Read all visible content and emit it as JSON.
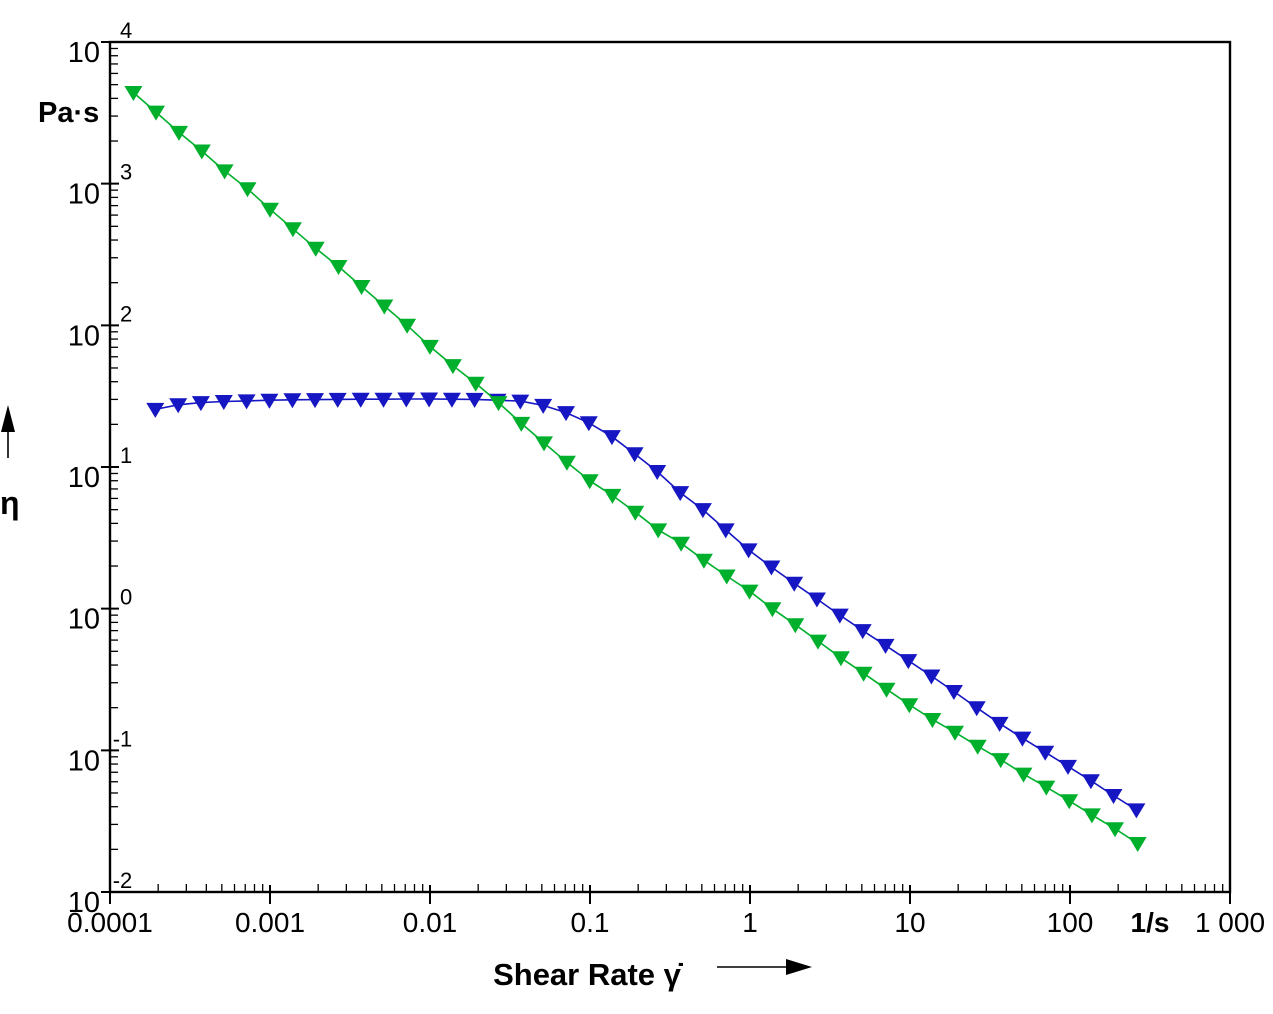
{
  "figure": {
    "background": "#ffffff",
    "frame_color": "#000000"
  },
  "chart_data": {
    "type": "line",
    "title": "",
    "x_scale": "log",
    "y_scale": "log",
    "xlabel": "Shear Rate γ̇",
    "ylabel": "η",
    "x_unit": "1/s",
    "y_unit": "Pa·s",
    "xlim": [
      0.0001,
      1000
    ],
    "ylim": [
      0.01,
      10000
    ],
    "grid": false,
    "legend_position": "none",
    "marker": "triangle-down",
    "x_tick_labels": [
      "0.0001",
      "0.001",
      "0.01",
      "0.1",
      "1",
      "10",
      "100",
      "1 000"
    ],
    "y_tick_base": "10",
    "y_tick_exponents": [
      4,
      3,
      2,
      1,
      0,
      -1,
      -2
    ],
    "series": [
      {
        "name": "blue-viscosity-curve",
        "color": "#1616c3",
        "x": [
          0.000192,
          0.000267,
          0.00037,
          0.000514,
          0.000714,
          0.000991,
          0.00138,
          0.00191,
          0.00265,
          0.00369,
          0.00512,
          0.00711,
          0.00987,
          0.0137,
          0.019,
          0.0264,
          0.0367,
          0.051,
          0.0708,
          0.0983,
          0.137,
          0.19,
          0.263,
          0.366,
          0.508,
          0.705,
          0.98,
          1.36,
          1.89,
          2.62,
          3.64,
          5.06,
          7.03,
          9.76,
          13.6,
          18.8,
          26.1,
          36.3,
          50.4,
          70,
          97.2,
          135,
          187,
          260
        ],
        "y": [
          25.5,
          27.5,
          28.5,
          29,
          29.3,
          29.6,
          29.8,
          29.9,
          30,
          30.1,
          30.1,
          30.2,
          30.2,
          30.1,
          30,
          29.6,
          29.2,
          27.2,
          24.2,
          20.5,
          16.4,
          12.4,
          9.3,
          6.6,
          5,
          3.6,
          2.6,
          1.97,
          1.51,
          1.17,
          0.9,
          0.7,
          0.55,
          0.43,
          0.335,
          0.26,
          0.2,
          0.155,
          0.122,
          0.097,
          0.077,
          0.061,
          0.048,
          0.038
        ]
      },
      {
        "name": "green-viscosity-curve",
        "color": "#00b02c",
        "x": [
          0.00014,
          0.000194,
          0.00027,
          0.000375,
          0.00052,
          0.000723,
          0.001,
          0.00139,
          0.00193,
          0.00268,
          0.00373,
          0.00518,
          0.00719,
          0.00999,
          0.0139,
          0.0193,
          0.0268,
          0.0372,
          0.0516,
          0.0717,
          0.0996,
          0.138,
          0.192,
          0.267,
          0.371,
          0.515,
          0.715,
          0.993,
          1.38,
          1.92,
          2.66,
          3.7,
          5.13,
          7.13,
          9.9,
          13.8,
          19.1,
          26.5,
          36.9,
          51.2,
          71.1,
          98.8,
          137,
          191,
          265
        ],
        "y": [
          4400,
          3200,
          2300,
          1700,
          1230,
          920,
          660,
          480,
          350,
          260,
          188,
          137,
          100,
          71,
          52,
          39,
          28.5,
          20.3,
          14.8,
          10.8,
          8,
          6.3,
          4.8,
          3.6,
          2.9,
          2.2,
          1.7,
          1.33,
          1,
          0.77,
          0.59,
          0.45,
          0.35,
          0.27,
          0.21,
          0.165,
          0.134,
          0.107,
          0.086,
          0.068,
          0.055,
          0.044,
          0.035,
          0.028,
          0.022
        ]
      }
    ]
  }
}
